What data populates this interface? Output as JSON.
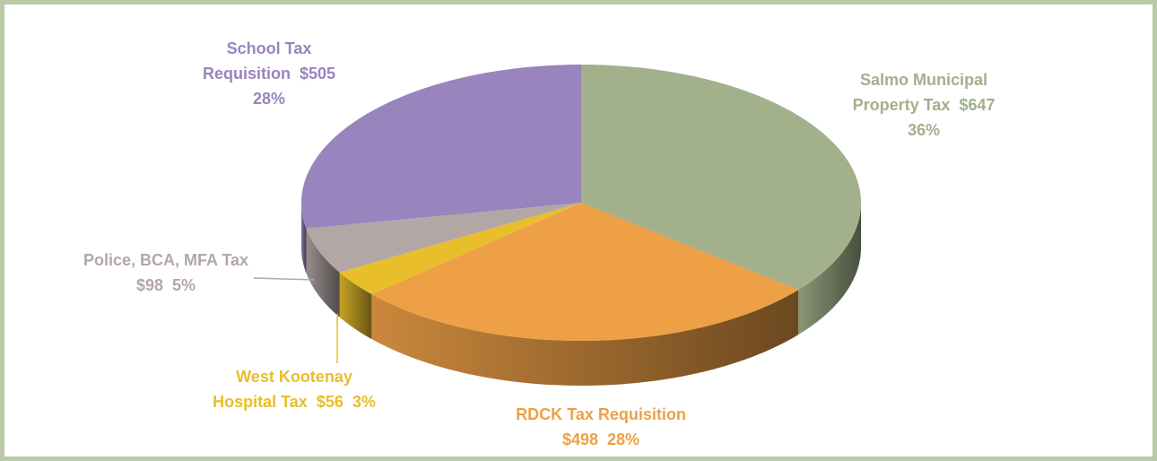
{
  "chart_data": {
    "type": "pie3d",
    "categories": [
      "Salmo Municipal Property Tax",
      "RDCK Tax Requisition",
      "West Kootenay Hospital Tax",
      "Police, BCA, MFA Tax",
      "School Tax Requisition"
    ],
    "values": [
      647,
      498,
      56,
      98,
      505
    ],
    "value_labels": [
      "$647",
      "$498",
      "$56",
      "$98",
      "$505"
    ],
    "percents": [
      36,
      28,
      3,
      5,
      28
    ],
    "percent_labels": [
      "36%",
      "28%",
      "3%",
      "5%",
      "28%"
    ],
    "colors": [
      "#a2b08c",
      "#eea046",
      "#e8be2a",
      "#b3a7a6",
      "#9a84bd"
    ]
  }
}
